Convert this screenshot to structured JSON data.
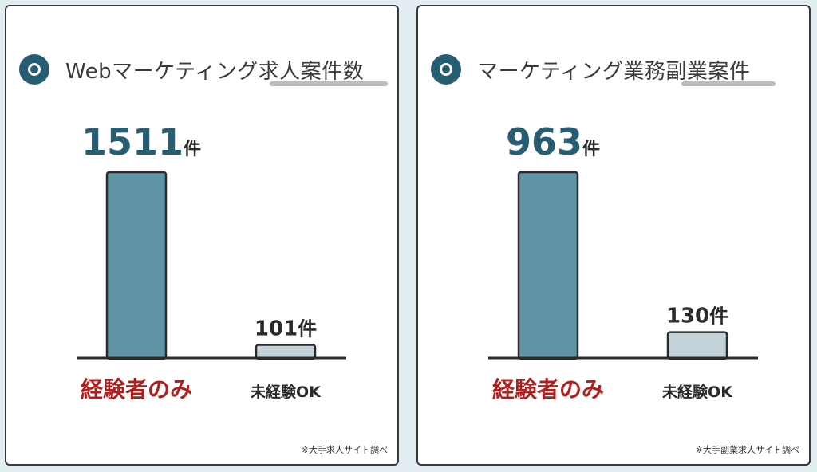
{
  "colors": {
    "accent": "#275d72",
    "bar_primary": "#5f94a6",
    "bar_secondary": "#c3d3d9",
    "highlight_red": "#b01e1e"
  },
  "chart_data": [
    {
      "type": "bar",
      "title": "Webマーケティング求人案件数",
      "categories": [
        "経験者のみ",
        "未経験OK"
      ],
      "values": [
        1511,
        101
      ],
      "value_labels": [
        {
          "number": "1511",
          "unit": "件"
        },
        {
          "number": "101",
          "unit": "件"
        }
      ],
      "ylim": [
        0,
        1511
      ],
      "note": "※大手求人サイト調べ"
    },
    {
      "type": "bar",
      "title": "マーケティング業務副業案件",
      "categories": [
        "経験者のみ",
        "未経験OK"
      ],
      "values": [
        963,
        130
      ],
      "value_labels": [
        {
          "number": "963",
          "unit": "件"
        },
        {
          "number": "130",
          "unit": "件"
        }
      ],
      "ylim": [
        0,
        963
      ],
      "note": "※大手副業求人サイト調べ"
    }
  ]
}
